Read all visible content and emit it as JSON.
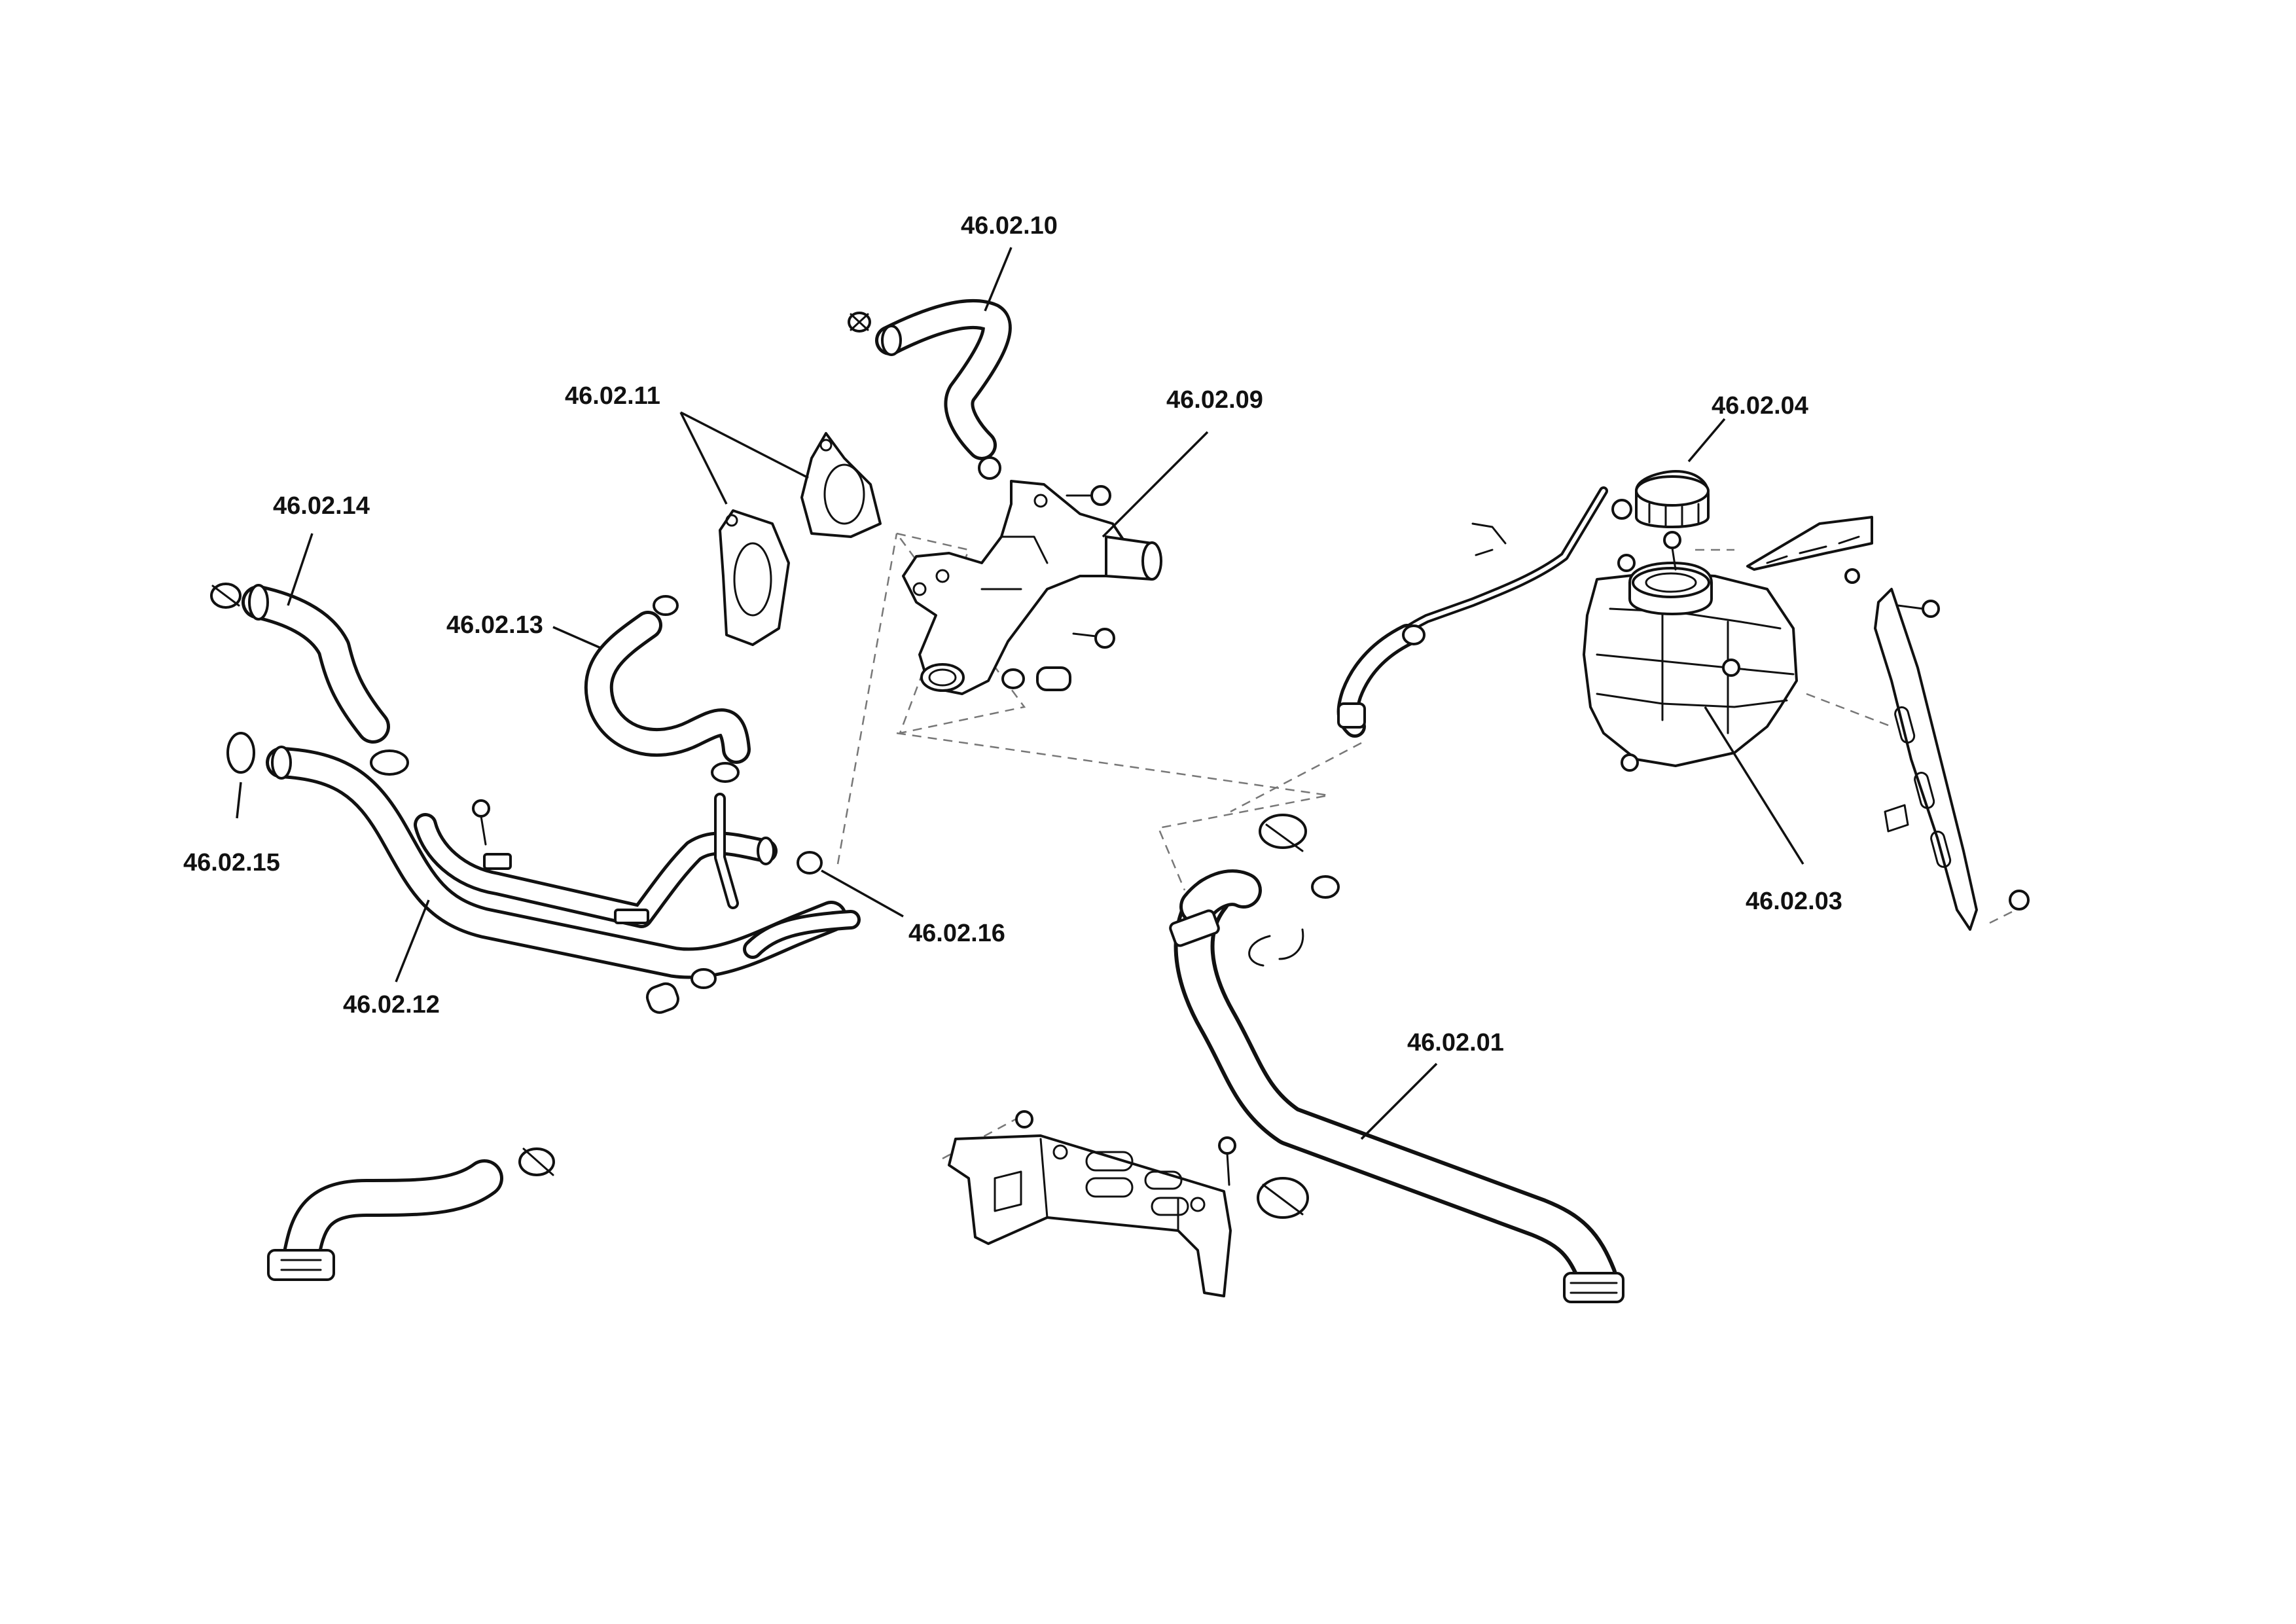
{
  "callouts": {
    "c_46_02_01": "46.02.01",
    "c_46_02_03": "46.02.03",
    "c_46_02_04": "46.02.04",
    "c_46_02_09": "46.02.09",
    "c_46_02_10": "46.02.10",
    "c_46_02_11": "46.02.11",
    "c_46_02_12": "46.02.12",
    "c_46_02_13": "46.02.13",
    "c_46_02_14": "46.02.14",
    "c_46_02_15": "46.02.15",
    "c_46_02_16": "46.02.16"
  },
  "colors": {
    "line": "#111111",
    "background": "#ffffff",
    "dash": "#777777"
  }
}
